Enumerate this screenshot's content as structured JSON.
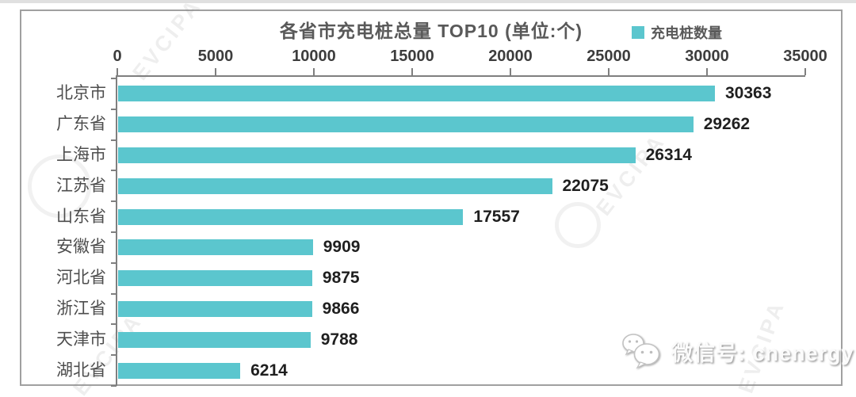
{
  "chart_data": {
    "type": "bar",
    "orientation": "horizontal",
    "title": "各省市充电桩总量 TOP10  (单位:个)",
    "legend": {
      "label": "充电桩数量",
      "position": "top-right"
    },
    "axis_position": "top",
    "categories": [
      "北京市",
      "广东省",
      "上海市",
      "江苏省",
      "山东省",
      "安徽省",
      "河北省",
      "浙江省",
      "天津市",
      "湖北省"
    ],
    "series": [
      {
        "name": "充电桩数量",
        "values": [
          30363,
          29262,
          26314,
          22075,
          17557,
          9909,
          9875,
          9866,
          9788,
          6214
        ]
      }
    ],
    "xlabel": "",
    "ylabel": "",
    "xlim": [
      0,
      35000
    ],
    "xticks": [
      0,
      5000,
      10000,
      15000,
      20000,
      25000,
      30000,
      35000
    ],
    "grid": false,
    "bar_color": "#5BC6CE",
    "axis_color": "#7f7f7f",
    "title_color": "#595959",
    "value_label_color": "#1f1f1f"
  },
  "watermark": {
    "text": "EVCIPA"
  },
  "footer": {
    "wechat_label": "微信号: cnenergy"
  }
}
